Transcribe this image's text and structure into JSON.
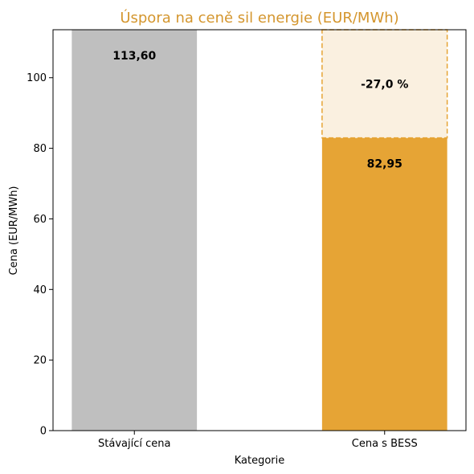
{
  "chart_data": {
    "type": "bar",
    "title": "Úspora na ceně sil energie (EUR/MWh)",
    "xlabel": "Kategorie",
    "ylabel": "Cena (EUR/MWh)",
    "categories": [
      "Stávající cena",
      "Cena s BESS"
    ],
    "values": [
      113.6,
      82.95
    ],
    "value_labels": [
      "113,60",
      "82,95"
    ],
    "savings": {
      "from": 82.95,
      "to": 113.6,
      "label": "-27,0 %"
    },
    "ylim": [
      0,
      113.6
    ],
    "yticks": [
      0,
      20,
      40,
      60,
      80,
      100
    ],
    "grid": false,
    "colors": {
      "title": "#d4962e",
      "bar_current": "#bfbfbf",
      "bar_bess": "#e6a435",
      "savings_fill": "#faf0e0",
      "savings_border": "#e6a435"
    }
  }
}
